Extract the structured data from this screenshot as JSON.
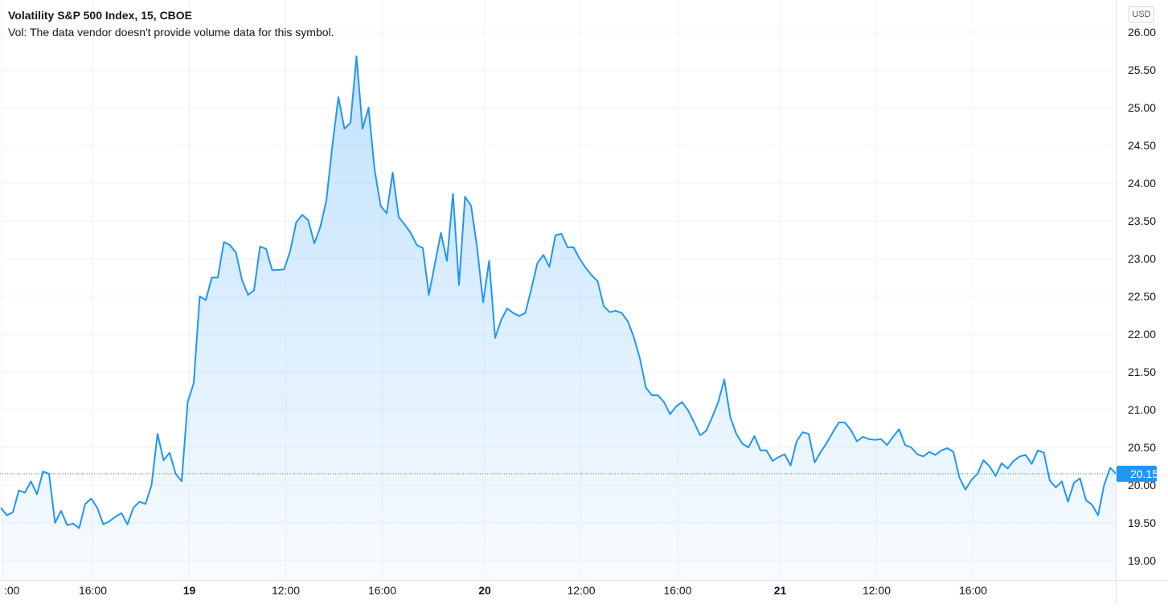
{
  "legend": {
    "title": "Volatility S&P 500 Index, 15, CBOE",
    "volume_note": "Vol: The data vendor doesn't provide volume data for this symbol."
  },
  "currency_label": "USD",
  "colors": {
    "line": "#2196f3",
    "area_top": "#2196f3",
    "grid": "#f0f3fa",
    "price_tag": "#2196f3",
    "axis_text": "#131722"
  },
  "chart_data": {
    "type": "area",
    "symbol": "Volatility S&P 500 Index",
    "interval": "15",
    "exchange": "CBOE",
    "last_price": 20.15,
    "last_price_label": "20.15",
    "ylim": [
      18.85,
      26.2
    ],
    "y_ticks": [
      19.0,
      19.5,
      20.0,
      20.5,
      21.0,
      21.5,
      22.0,
      22.5,
      23.0,
      23.5,
      24.0,
      24.5,
      25.0,
      25.5,
      26.0
    ],
    "y_tick_labels": [
      "19.00",
      "19.50",
      "20.00",
      "20.50",
      "21.00",
      "21.50",
      "22.00",
      "22.50",
      "23.00",
      "23.50",
      "24.00",
      "24.50",
      "25.00",
      "25.50",
      "26.00"
    ],
    "x_tick_labels": [
      {
        "label": ":00",
        "bar": 0,
        "bold": false
      },
      {
        "label": "16:00",
        "bar": 15,
        "bold": false
      },
      {
        "label": "19",
        "bar": 31,
        "bold": true
      },
      {
        "label": "12:00",
        "bar": 47,
        "bold": false
      },
      {
        "label": "16:00",
        "bar": 63,
        "bold": false
      },
      {
        "label": "20",
        "bar": 80,
        "bold": true
      },
      {
        "label": "12:00",
        "bar": 96,
        "bold": false
      },
      {
        "label": "16:00",
        "bar": 112,
        "bold": false
      },
      {
        "label": "21",
        "bar": 129,
        "bold": true
      },
      {
        "label": "12:00",
        "bar": 145,
        "bold": false
      },
      {
        "label": "16:00",
        "bar": 161,
        "bold": false
      }
    ],
    "values": [
      19.7,
      19.6,
      19.64,
      19.93,
      19.9,
      20.05,
      19.88,
      20.18,
      20.15,
      19.5,
      19.66,
      19.47,
      19.49,
      19.43,
      19.75,
      19.82,
      19.7,
      19.48,
      19.52,
      19.58,
      19.63,
      19.48,
      19.7,
      19.78,
      19.75,
      20.0,
      20.68,
      20.33,
      20.43,
      20.15,
      20.05,
      21.1,
      21.35,
      22.5,
      22.45,
      22.75,
      22.75,
      23.22,
      23.18,
      23.08,
      22.72,
      22.52,
      22.58,
      23.16,
      23.13,
      22.85,
      22.85,
      22.86,
      23.1,
      23.48,
      23.58,
      23.51,
      23.2,
      23.42,
      23.77,
      24.5,
      25.14,
      24.72,
      24.8,
      25.68,
      24.72,
      25.0,
      24.18,
      23.7,
      23.6,
      24.14,
      23.55,
      23.45,
      23.34,
      23.18,
      23.14,
      22.52,
      22.93,
      23.34,
      22.97,
      23.86,
      22.65,
      23.82,
      23.7,
      23.15,
      22.42,
      22.97,
      21.95,
      22.19,
      22.34,
      22.28,
      22.24,
      22.28,
      22.6,
      22.94,
      23.05,
      22.89,
      23.31,
      23.33,
      23.15,
      23.15,
      23.0,
      22.88,
      22.78,
      22.7,
      22.37,
      22.29,
      22.31,
      22.28,
      22.17,
      21.96,
      21.68,
      21.29,
      21.19,
      21.19,
      21.1,
      20.94,
      21.04,
      21.1,
      20.99,
      20.83,
      20.66,
      20.72,
      20.9,
      21.1,
      21.4,
      20.9,
      20.68,
      20.55,
      20.5,
      20.65,
      20.46,
      20.46,
      20.32,
      20.37,
      20.41,
      20.26,
      20.58,
      20.7,
      20.68,
      20.3,
      20.44,
      20.56,
      20.7,
      20.83,
      20.83,
      20.73,
      20.58,
      20.64,
      20.61,
      20.6,
      20.61,
      20.53,
      20.64,
      20.74,
      20.53,
      20.5,
      20.41,
      20.38,
      20.44,
      20.4,
      20.46,
      20.49,
      20.44,
      20.1,
      19.94,
      20.07,
      20.15,
      20.33,
      20.25,
      20.12,
      20.29,
      20.22,
      20.32,
      20.38,
      20.4,
      20.28,
      20.46,
      20.43,
      20.06,
      19.97,
      20.05,
      19.78,
      20.03,
      20.09,
      19.8,
      19.74,
      19.6,
      20.0,
      20.23,
      20.15
    ]
  }
}
